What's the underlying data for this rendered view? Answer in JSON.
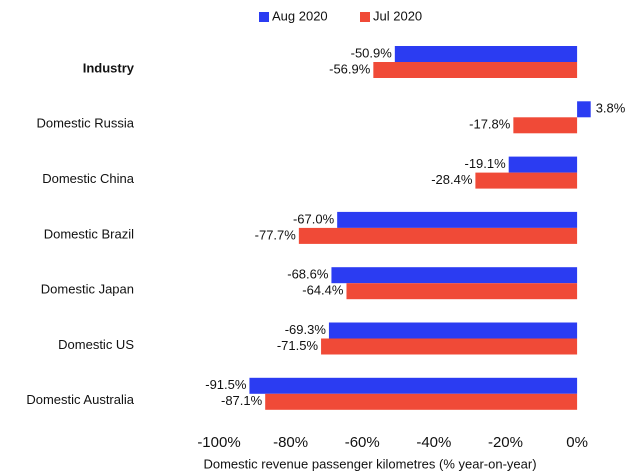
{
  "chart_data": {
    "type": "bar",
    "orientation": "horizontal",
    "x_label": "Domestic revenue passenger kilometres (% year-on-year)",
    "categories": [
      "Industry",
      "Domestic Russia",
      "Domestic China",
      "Domestic Brazil",
      "Domestic Japan",
      "Domestic US",
      "Domestic Australia"
    ],
    "series": [
      {
        "name": "Aug 2020",
        "color": "#2b3cf2",
        "values": [
          -50.9,
          3.8,
          -19.1,
          -67.0,
          -68.6,
          -69.3,
          -91.5
        ],
        "value_labels": [
          "-50.9%",
          "3.8%",
          "-19.1%",
          "-67.0%",
          "-68.6%",
          "-69.3%",
          "-91.5%"
        ]
      },
      {
        "name": "Jul 2020",
        "color": "#f04a37",
        "values": [
          -56.9,
          -17.8,
          -28.4,
          -77.7,
          -64.4,
          -71.5,
          -87.1
        ],
        "value_labels": [
          "-56.9%",
          "-17.8%",
          "-28.4%",
          "-77.7%",
          "-64.4%",
          "-71.5%",
          "-87.1%"
        ]
      }
    ],
    "xlim": [
      -100,
      5
    ],
    "xticks": [
      {
        "value": -100,
        "label": "-100%"
      },
      {
        "value": -80,
        "label": "-80%"
      },
      {
        "value": -60,
        "label": "-60%"
      },
      {
        "value": -40,
        "label": "-40%"
      },
      {
        "value": -20,
        "label": "-20%"
      },
      {
        "value": 0,
        "label": "0%"
      }
    ],
    "legend": "top"
  }
}
